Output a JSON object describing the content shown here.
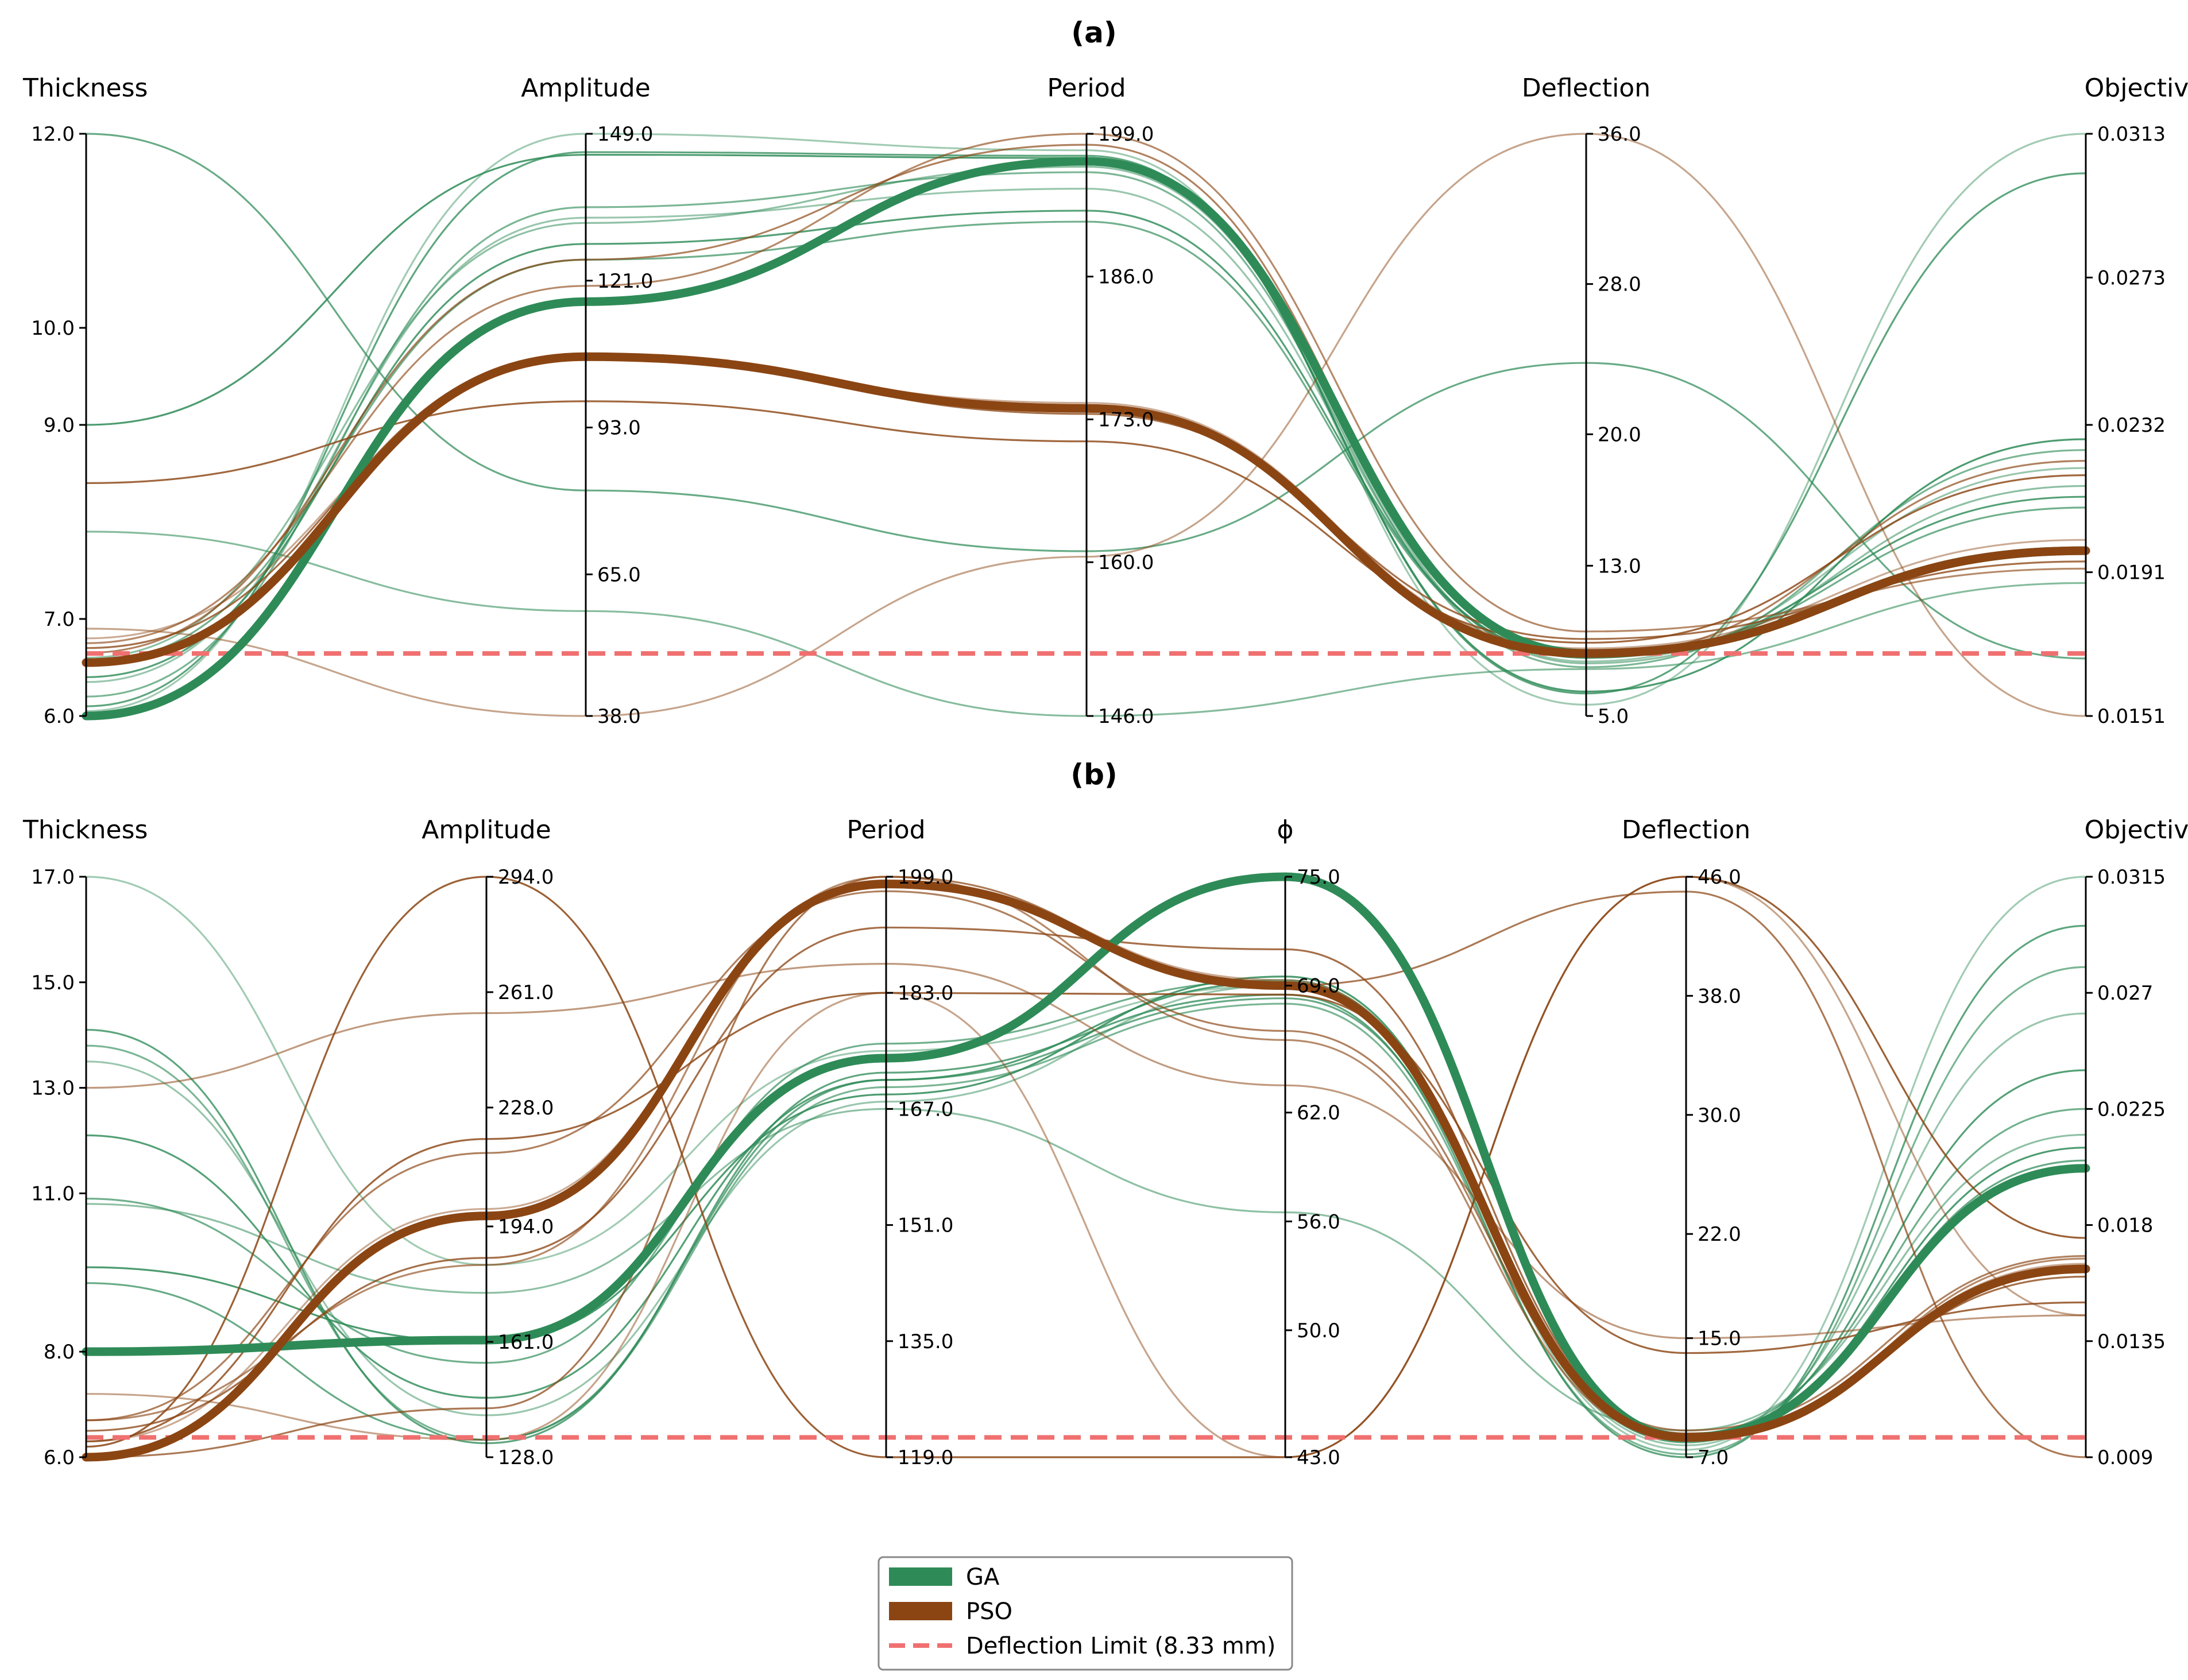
{
  "chart_data": [
    {
      "type": "parallel-coordinates",
      "title": "(a)",
      "axes": [
        {
          "name": "Thickness",
          "ticks": [
            "12.0",
            "10.0",
            "9.0",
            "7.0",
            "6.0"
          ],
          "range": [
            6.0,
            12.0
          ]
        },
        {
          "name": "Amplitude",
          "ticks": [
            "149.0",
            "121.0",
            "93.0",
            "65.0",
            "38.0"
          ],
          "range": [
            38.0,
            149.0
          ]
        },
        {
          "name": "Period",
          "ticks": [
            "199.0",
            "186.0",
            "173.0",
            "160.0",
            "146.0"
          ],
          "range": [
            146.0,
            199.0
          ]
        },
        {
          "name": "Deflection",
          "ticks": [
            "36.0",
            "28.0",
            "20.0",
            "13.0",
            "5.0"
          ],
          "range": [
            5.0,
            36.0
          ]
        },
        {
          "name": "Objective",
          "ticks": [
            "0.0313",
            "0.0273",
            "0.0232",
            "0.0191",
            "0.0151"
          ],
          "range": [
            0.0151,
            0.0313
          ]
        }
      ],
      "deflection_limit": 8.33,
      "series": [
        {
          "name": "GA",
          "best": [
            6.0,
            117.0,
            196.5,
            8.33,
            0.0197
          ],
          "solutions": [
            [
              6.05,
              149.0,
              197.5,
              5.6,
              0.0313
            ],
            [
              6.1,
              145.5,
              197.0,
              6.2,
              0.0302
            ],
            [
              6.2,
              135.0,
              195.5,
              7.6,
              0.0225
            ],
            [
              6.35,
              133.0,
              194.0,
              7.9,
              0.022
            ],
            [
              6.4,
              128.0,
              192.0,
              8.1,
              0.0212
            ],
            [
              6.55,
              125.0,
              191.0,
              8.1,
              0.0209
            ],
            [
              6.6,
              132.0,
              196.0,
              7.8,
              0.0215
            ],
            [
              9.0,
              145.0,
              196.8,
              6.3,
              0.0228
            ],
            [
              12.0,
              81.0,
              161.0,
              23.8,
              0.0167
            ],
            [
              7.9,
              58.0,
              146.0,
              7.5,
              0.0188
            ]
          ]
        },
        {
          "name": "PSO",
          "best": [
            6.55,
            106.5,
            174.0,
            8.33,
            0.0197
          ],
          "solutions": [
            [
              6.8,
              106.0,
              174.5,
              8.6,
              0.02
            ],
            [
              6.7,
              107.0,
              173.5,
              9.1,
              0.0194
            ],
            [
              6.75,
              120.0,
              199.0,
              9.5,
              0.0192
            ],
            [
              6.9,
              38.0,
              160.5,
              36.0,
              0.0151
            ],
            [
              8.4,
              98.0,
              171.0,
              8.9,
              0.0218
            ],
            [
              6.65,
              125.0,
              198.0,
              8.2,
              0.0222
            ]
          ]
        }
      ]
    },
    {
      "type": "parallel-coordinates",
      "title": "(b)",
      "axes": [
        {
          "name": "Thickness",
          "ticks": [
            "17.0",
            "15.0",
            "13.0",
            "11.0",
            "8.0",
            "6.0"
          ],
          "range": [
            6.0,
            17.0
          ]
        },
        {
          "name": "Amplitude",
          "ticks": [
            "294.0",
            "261.0",
            "228.0",
            "194.0",
            "161.0",
            "128.0"
          ],
          "range": [
            128.0,
            294.0
          ]
        },
        {
          "name": "Period",
          "ticks": [
            "199.0",
            "183.0",
            "167.0",
            "151.0",
            "135.0",
            "119.0"
          ],
          "range": [
            119.0,
            199.0
          ]
        },
        {
          "name": "ϕ",
          "ticks": [
            "75.0",
            "69.0",
            "62.0",
            "56.0",
            "50.0",
            "43.0"
          ],
          "range": [
            43.0,
            75.0
          ]
        },
        {
          "name": "Deflection",
          "ticks": [
            "46.0",
            "38.0",
            "30.0",
            "22.0",
            "15.0",
            "7.0"
          ],
          "range": [
            7.0,
            46.0
          ]
        },
        {
          "name": "Objective",
          "ticks": [
            "0.0315",
            "0.027",
            "0.0225",
            "0.018",
            "0.0135",
            "0.009"
          ],
          "range": [
            0.009,
            0.0315
          ]
        }
      ],
      "deflection_limit": 8.33,
      "series": [
        {
          "name": "GA",
          "best": [
            8.0,
            161.5,
            174.0,
            75.0,
            8.33,
            0.0202
          ],
          "solutions": [
            [
              17.0,
              183.0,
              175.0,
              69.0,
              7.5,
              0.0315
            ],
            [
              14.1,
              132.0,
              172.0,
              68.5,
              7.0,
              0.0296
            ],
            [
              13.8,
              133.0,
              170.0,
              68.0,
              7.2,
              0.028
            ],
            [
              13.5,
              140.0,
              168.0,
              69.0,
              7.8,
              0.0262
            ],
            [
              12.1,
              145.0,
              171.0,
              69.2,
              8.0,
              0.024
            ],
            [
              10.9,
              155.0,
              176.0,
              69.3,
              8.5,
              0.0225
            ],
            [
              10.8,
              175.0,
              167.0,
              56.5,
              8.8,
              0.0215
            ],
            [
              9.6,
              161.0,
              169.0,
              69.5,
              8.2,
              0.021
            ],
            [
              9.3,
              133.0,
              171.0,
              68.3,
              8.4,
              0.0205
            ]
          ]
        },
        {
          "name": "PSO",
          "best": [
            6.0,
            197.0,
            198.0,
            69.0,
            8.33,
            0.0163
          ],
          "solutions": [
            [
              6.3,
              199.0,
              198.5,
              69.3,
              8.4,
              0.0165
            ],
            [
              6.5,
              185.0,
              192.0,
              71.0,
              8.6,
              0.016
            ],
            [
              6.7,
              183.0,
              199.0,
              66.0,
              8.2,
              0.0167
            ],
            [
              7.2,
              133.0,
              183.0,
              43.0,
              46.0,
              0.0145
            ],
            [
              6.3,
              219.0,
              183.0,
              68.5,
              14.0,
              0.015
            ],
            [
              6.7,
              215.0,
              197.0,
              66.5,
              8.8,
              0.0168
            ],
            [
              13.0,
              255.0,
              187.0,
              63.5,
              15.0,
              0.0145
            ],
            [
              6.2,
              294.0,
              119.0,
              43.0,
              46.0,
              0.0175
            ],
            [
              6.0,
              142.0,
              199.0,
              69.0,
              45.0,
              0.009
            ]
          ]
        }
      ]
    }
  ],
  "legend": {
    "items": [
      {
        "label": "GA",
        "color": "#2e8b57",
        "style": "band"
      },
      {
        "label": "PSO",
        "color": "#8b4513",
        "style": "band"
      },
      {
        "label": "Deflection Limit (8.33 mm)",
        "color": "#f07070",
        "style": "dashed"
      }
    ]
  },
  "colors": {
    "ga": "#2e8b57",
    "pso": "#8b4513",
    "limit": "#f07070"
  }
}
